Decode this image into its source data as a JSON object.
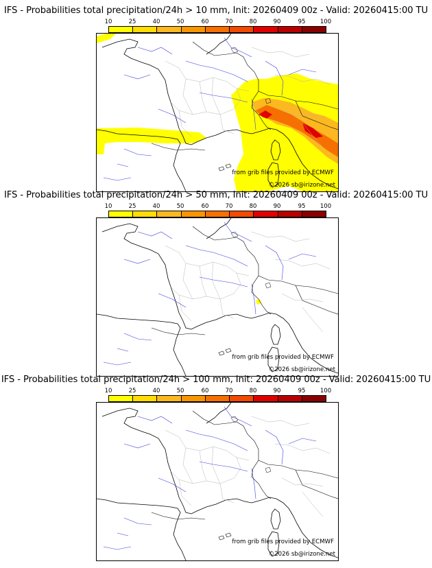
{
  "colorbar": {
    "labels": [
      "10",
      "25",
      "40",
      "50",
      "60",
      "70",
      "80",
      "90",
      "95",
      "100"
    ],
    "colors": [
      "#ffff00",
      "#ffdd00",
      "#fcb820",
      "#f99500",
      "#f57000",
      "#f24a00",
      "#e10000",
      "#b80000",
      "#8a0000",
      "#5c0000"
    ]
  },
  "credit": "from grib files provided by ECMWF",
  "copyright": "©2026 sb@irizone.net",
  "panels": [
    {
      "title": "IFS - Probabilities total precipitation/24h > 10 mm, Init: 20260409 00z - Valid: 20260415:00 TU"
    },
    {
      "title": "IFS - Probabilities total precipitation/24h > 50 mm, Init: 20260409 00z - Valid: 20260415:00 TU"
    },
    {
      "title": "IFS - Probabilities total precipitation/24h > 100 mm, Init: 20260409 00z - Valid: 20260415:00 TU"
    }
  ]
}
